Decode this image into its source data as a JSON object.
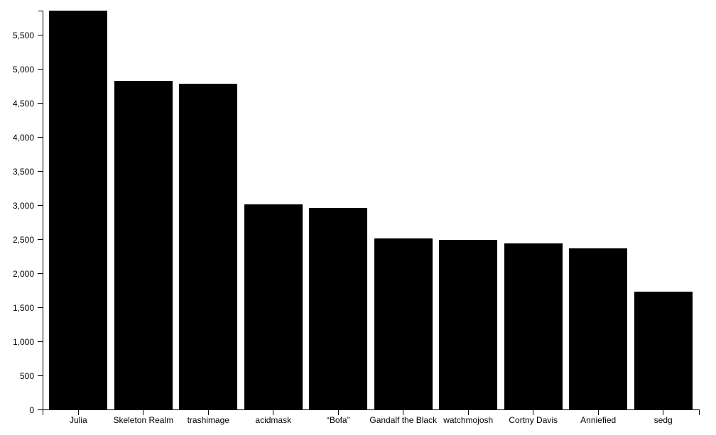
{
  "chart_data": {
    "type": "bar",
    "title": "",
    "xlabel": "",
    "ylabel": "",
    "categories": [
      "Julia",
      "Skeleton Realm",
      "trashimage",
      "acidmask",
      "“Bofa”",
      "Gandalf the Black",
      "watchmojosh",
      "Cortny Davis",
      "Anniefied",
      "sedg"
    ],
    "values": [
      5860,
      4830,
      4785,
      3015,
      2965,
      2515,
      2490,
      2445,
      2365,
      1735
    ],
    "ylim": [
      0,
      5860
    ],
    "y_ticks": [
      0,
      500,
      1000,
      1500,
      2000,
      2500,
      3000,
      3500,
      4000,
      4500,
      5000,
      5500
    ],
    "y_tick_labels": [
      "0",
      "500",
      "1,000",
      "1,500",
      "2,000",
      "2,500",
      "3,000",
      "3,500",
      "4,000",
      "4,500",
      "5,000",
      "5,500"
    ],
    "bar_color": "#000000",
    "axis_color": "#000000",
    "grid": false,
    "legend": false
  }
}
